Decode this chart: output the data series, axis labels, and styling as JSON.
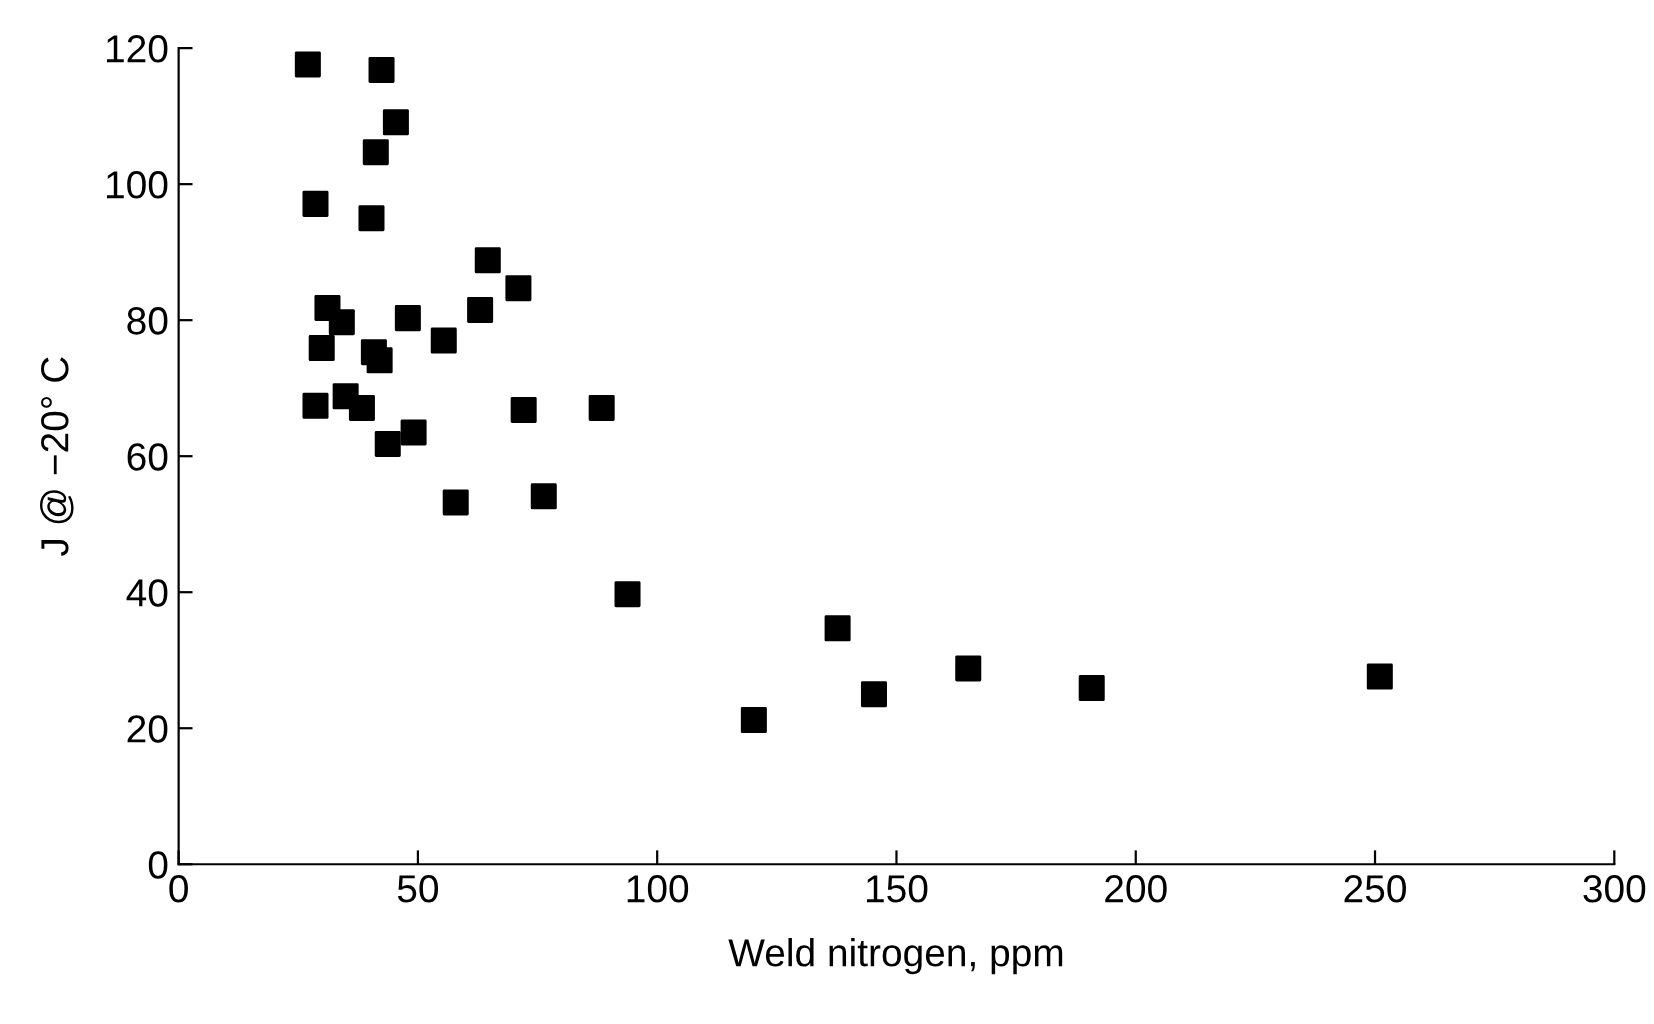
{
  "chart_data": {
    "type": "scatter",
    "xlabel": "Weld nitrogen, ppm",
    "ylabel": "J @ −20° C",
    "x": [
      27,
      42.4,
      45.4,
      41.2,
      28.6,
      40.3,
      64.6,
      63,
      71,
      31.1,
      34.1,
      47.9,
      55.4,
      29.9,
      40.8,
      42,
      28.6,
      34.9,
      38.3,
      72.1,
      88.4,
      43.7,
      49.1,
      57.9,
      76.3,
      93.8,
      120.2,
      137.7,
      145.3,
      165,
      190.8,
      251
    ],
    "series": [
      {
        "color": "#000000",
        "values": [
          117.6,
          116.8,
          109.1,
          104.7,
          97.1,
          95,
          88.8,
          81.5,
          84.7,
          81.8,
          79.7,
          80.3,
          77,
          75.9,
          75.3,
          74.1,
          67.4,
          68.8,
          67.1,
          66.8,
          67.1,
          61.8,
          63.5,
          53.2,
          54.1,
          39.7,
          21.2,
          34.7,
          25,
          28.8,
          25.9,
          27.6
        ]
      }
    ],
    "xlim": [
      0,
      300
    ],
    "xticks": [
      0,
      50,
      100,
      150,
      200,
      250,
      300
    ],
    "ylim": [
      0,
      120
    ],
    "yticks": [
      0,
      20,
      40,
      60,
      80,
      100,
      120
    ],
    "marker": "square",
    "grid": false,
    "legend": false
  }
}
